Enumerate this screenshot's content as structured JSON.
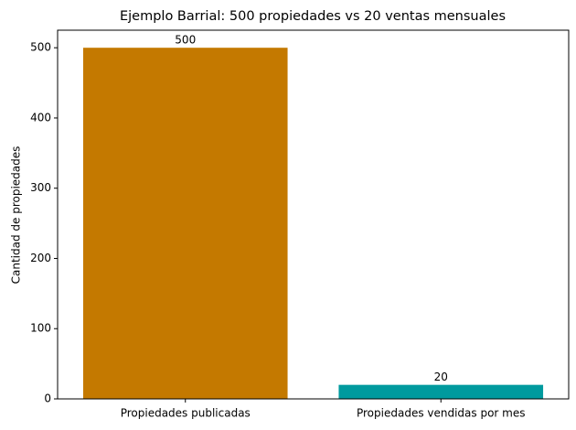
{
  "chart_data": {
    "type": "bar",
    "title": "Ejemplo Barrial: 500 propiedades vs 20 ventas mensuales",
    "ylabel": "Cantidad de propiedades",
    "categories": [
      "Propiedades publicadas",
      "Propiedades vendidas por mes"
    ],
    "values": [
      500,
      20
    ],
    "colors": [
      "#c47900",
      "#009a9e"
    ],
    "ylim": [
      0,
      525
    ],
    "yticks": [
      0,
      100,
      200,
      300,
      400,
      500
    ],
    "grid": false
  }
}
